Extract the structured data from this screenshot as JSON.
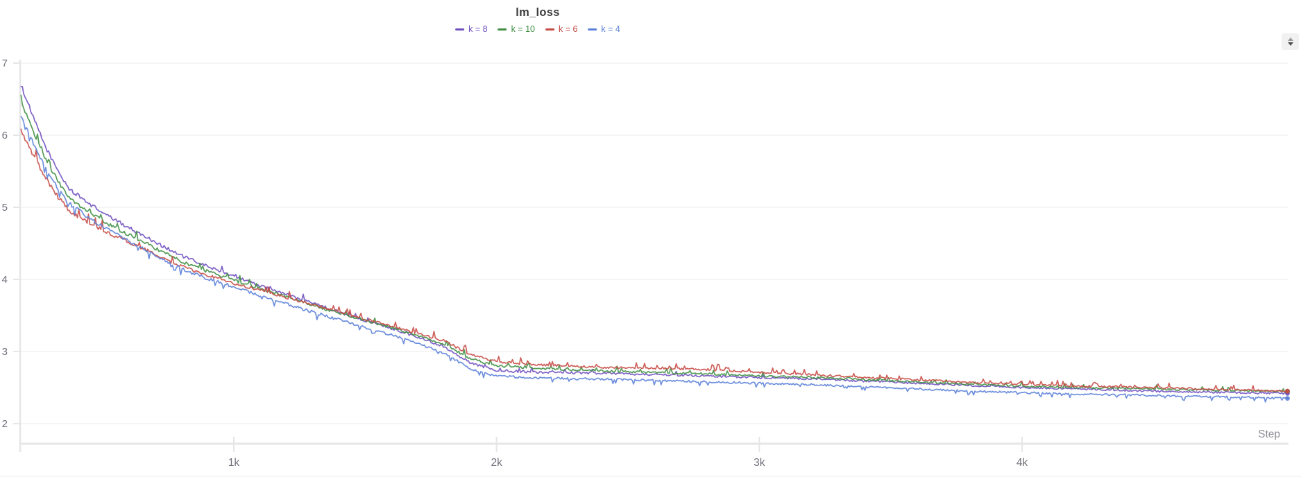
{
  "panel": {
    "icons": [
      "triangle-up-icon",
      "triangle-down-icon"
    ]
  },
  "chart_data": {
    "type": "line",
    "title": "lm_loss",
    "xlabel": "Step",
    "grid": "horizontal",
    "legend_position": "top-center",
    "x_axis": {
      "min": 190,
      "max": 5010,
      "ticks": [
        {
          "value": 1000,
          "label": "1k"
        },
        {
          "value": 2000,
          "label": "2k"
        },
        {
          "value": 3000,
          "label": "3k"
        },
        {
          "value": 4000,
          "label": "4k"
        }
      ]
    },
    "y_axis": {
      "min": 2,
      "max": 7,
      "ticks": [
        {
          "value": 7,
          "label": "7"
        },
        {
          "value": 6,
          "label": "6"
        },
        {
          "value": 5,
          "label": "5"
        },
        {
          "value": 4,
          "label": "4"
        },
        {
          "value": 3,
          "label": "3"
        },
        {
          "value": 2,
          "label": "2"
        }
      ]
    },
    "steps": [
      190,
      236,
      282,
      328,
      374,
      450,
      525,
      600,
      700,
      800,
      900,
      1000,
      1100,
      1200,
      1300,
      1400,
      1500,
      1600,
      1700,
      1800,
      1900,
      2000,
      2100,
      2200,
      2400,
      2600,
      2800,
      3000,
      3200,
      3400,
      3600,
      3800,
      4000,
      4200,
      4400,
      4600,
      4800,
      5010
    ],
    "series": [
      {
        "name": "k = 8",
        "color": "#6e4fbf",
        "values": [
          6.7,
          6.25,
          5.85,
          5.52,
          5.25,
          5.05,
          4.87,
          4.72,
          4.52,
          4.33,
          4.18,
          4.05,
          3.91,
          3.79,
          3.67,
          3.55,
          3.43,
          3.32,
          3.2,
          3.07,
          2.84,
          2.74,
          2.72,
          2.71,
          2.7,
          2.68,
          2.66,
          2.64,
          2.62,
          2.59,
          2.56,
          2.53,
          2.5,
          2.48,
          2.46,
          2.44,
          2.43,
          2.42
        ]
      },
      {
        "name": "k = 10",
        "color": "#3e8e41",
        "values": [
          6.48,
          6.06,
          5.68,
          5.38,
          5.12,
          4.93,
          4.76,
          4.62,
          4.43,
          4.25,
          4.11,
          3.99,
          3.87,
          3.76,
          3.64,
          3.53,
          3.43,
          3.33,
          3.22,
          3.1,
          2.9,
          2.8,
          2.78,
          2.76,
          2.73,
          2.71,
          2.69,
          2.66,
          2.64,
          2.61,
          2.58,
          2.55,
          2.52,
          2.5,
          2.49,
          2.47,
          2.46,
          2.45
        ]
      },
      {
        "name": "k = 6",
        "color": "#c74a44",
        "values": [
          6.06,
          5.73,
          5.42,
          5.16,
          4.95,
          4.78,
          4.64,
          4.52,
          4.35,
          4.18,
          4.06,
          3.95,
          3.85,
          3.75,
          3.65,
          3.55,
          3.45,
          3.35,
          3.25,
          3.15,
          2.96,
          2.86,
          2.83,
          2.81,
          2.78,
          2.77,
          2.75,
          2.71,
          2.68,
          2.64,
          2.61,
          2.57,
          2.55,
          2.52,
          2.51,
          2.49,
          2.47,
          2.45
        ]
      },
      {
        "name": "k = 4",
        "color": "#5a80d8",
        "values": [
          6.28,
          5.9,
          5.56,
          5.28,
          5.05,
          4.85,
          4.68,
          4.53,
          4.33,
          4.15,
          4.01,
          3.9,
          3.77,
          3.66,
          3.55,
          3.44,
          3.33,
          3.23,
          3.11,
          2.98,
          2.76,
          2.66,
          2.64,
          2.63,
          2.62,
          2.6,
          2.58,
          2.56,
          2.54,
          2.51,
          2.48,
          2.45,
          2.43,
          2.41,
          2.4,
          2.38,
          2.37,
          2.35
        ]
      }
    ],
    "colors": {
      "grid": "#efefef",
      "axis": "#e6e6e6",
      "tick_label": "#70707a",
      "step_label": "#8e8e96",
      "title": "#3d3d3d",
      "background": "#ffffff",
      "button_bg": "#f1f1f1"
    }
  }
}
